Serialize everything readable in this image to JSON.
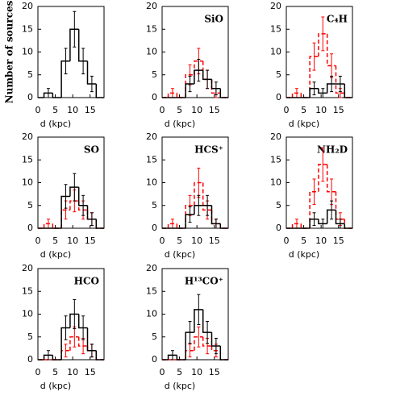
{
  "chart_data": [
    {
      "type": "histogram",
      "ylabel": "Number of sources",
      "xlabel": "d (kpc)",
      "bins": [
        0,
        1.75,
        4.25,
        6.75,
        9.25,
        11.75,
        14.25,
        16.75,
        19
      ],
      "xlim": [
        0,
        19
      ],
      "ylim": [
        0,
        20
      ],
      "xticks": [
        0,
        5,
        10,
        15
      ],
      "yticks": [
        0,
        5,
        10,
        15,
        20
      ],
      "series": [
        {
          "color": "#000000",
          "dashed": false,
          "values": [
            0,
            1,
            0,
            8,
            15,
            8,
            3,
            0
          ],
          "errors": [
            0,
            1,
            0,
            2.8,
            3.9,
            2.8,
            1.7,
            0
          ]
        }
      ]
    },
    {
      "type": "histogram",
      "label": "SiO",
      "xlabel": "d (kpc)",
      "bins": [
        0,
        1.75,
        4.25,
        6.75,
        9.25,
        11.75,
        14.25,
        16.75,
        19
      ],
      "xlim": [
        0,
        19
      ],
      "ylim": [
        0,
        20
      ],
      "xticks": [
        0,
        5,
        10,
        15
      ],
      "yticks": [
        0,
        5,
        10,
        15,
        20
      ],
      "series": [
        {
          "color": "#000000",
          "dashed": false,
          "values": [
            0,
            0,
            0,
            3,
            6,
            4,
            2,
            0
          ],
          "errors": [
            0,
            0,
            0,
            1.7,
            2.4,
            2,
            1.4,
            0
          ]
        },
        {
          "color": "#ff0000",
          "dashed": true,
          "values": [
            0,
            1,
            0,
            5,
            8,
            4,
            1,
            0
          ],
          "errors": [
            0,
            1,
            0,
            2.2,
            2.8,
            2,
            1,
            0
          ]
        }
      ]
    },
    {
      "type": "histogram",
      "label": "C₄H",
      "xlabel": "d (kpc)",
      "bins": [
        0,
        1.75,
        4.25,
        6.75,
        9.25,
        11.75,
        14.25,
        16.75,
        19
      ],
      "xlim": [
        0,
        19
      ],
      "ylim": [
        0,
        20
      ],
      "xticks": [
        0,
        5,
        10,
        15
      ],
      "yticks": [
        0,
        5,
        10,
        15,
        20
      ],
      "series": [
        {
          "color": "#000000",
          "dashed": false,
          "values": [
            0,
            0,
            0,
            2,
            1,
            3,
            3,
            0
          ],
          "errors": [
            0,
            0,
            0,
            1.4,
            1,
            1.7,
            1.7,
            0
          ]
        },
        {
          "color": "#ff0000",
          "dashed": true,
          "values": [
            0,
            1,
            0,
            9,
            14,
            7,
            1,
            0
          ],
          "errors": [
            0,
            1,
            0,
            3,
            3.7,
            2.6,
            1,
            0
          ]
        }
      ]
    },
    {
      "type": "histogram",
      "label": "SO",
      "xlabel": "d (kpc)",
      "bins": [
        0,
        1.75,
        4.25,
        6.75,
        9.25,
        11.75,
        14.25,
        16.75,
        19
      ],
      "xlim": [
        0,
        19
      ],
      "ylim": [
        0,
        20
      ],
      "xticks": [
        0,
        5,
        10,
        15
      ],
      "yticks": [
        0,
        5,
        10,
        15,
        20
      ],
      "series": [
        {
          "color": "#000000",
          "dashed": false,
          "values": [
            0,
            0,
            0,
            7,
            9,
            5,
            2,
            0
          ],
          "errors": [
            0,
            0,
            0,
            2.6,
            3,
            2.2,
            1.4,
            0
          ]
        },
        {
          "color": "#ff0000",
          "dashed": true,
          "values": [
            0,
            1,
            0,
            4,
            6,
            4,
            2,
            0
          ],
          "errors": [
            0,
            1,
            0,
            2,
            2.4,
            2,
            1.4,
            0
          ]
        }
      ]
    },
    {
      "type": "histogram",
      "label": "HCS⁺",
      "xlabel": "d (kpc)",
      "bins": [
        0,
        1.75,
        4.25,
        6.75,
        9.25,
        11.75,
        14.25,
        16.75,
        19
      ],
      "xlim": [
        0,
        19
      ],
      "ylim": [
        0,
        20
      ],
      "xticks": [
        0,
        5,
        10,
        15
      ],
      "yticks": [
        0,
        5,
        10,
        15,
        20
      ],
      "series": [
        {
          "color": "#000000",
          "dashed": false,
          "values": [
            0,
            0,
            0,
            3,
            5,
            5,
            1,
            0
          ],
          "errors": [
            0,
            0,
            0,
            1.7,
            2.2,
            2.2,
            1,
            0
          ]
        },
        {
          "color": "#ff0000",
          "dashed": true,
          "values": [
            0,
            1,
            0,
            5,
            10,
            4,
            1,
            0
          ],
          "errors": [
            0,
            1,
            0,
            2.2,
            3.2,
            2,
            1,
            0
          ]
        }
      ]
    },
    {
      "type": "histogram",
      "label": "NH₂D",
      "xlabel": "d (kpc)",
      "bins": [
        0,
        1.75,
        4.25,
        6.75,
        9.25,
        11.75,
        14.25,
        16.75,
        19
      ],
      "xlim": [
        0,
        19
      ],
      "ylim": [
        0,
        20
      ],
      "xticks": [
        0,
        5,
        10,
        15
      ],
      "yticks": [
        0,
        5,
        10,
        15,
        20
      ],
      "series": [
        {
          "color": "#000000",
          "dashed": false,
          "values": [
            0,
            0,
            0,
            2,
            1,
            4,
            1,
            0
          ],
          "errors": [
            0,
            0,
            0,
            1.4,
            1,
            2,
            1,
            0
          ]
        },
        {
          "color": "#ff0000",
          "dashed": true,
          "values": [
            0,
            1,
            0,
            8,
            14,
            8,
            2,
            0
          ],
          "errors": [
            0,
            1,
            0,
            2.8,
            3.7,
            2.8,
            1.4,
            0
          ]
        }
      ]
    },
    {
      "type": "histogram",
      "label": "HCO",
      "xlabel": "d (kpc)",
      "bins": [
        0,
        1.75,
        4.25,
        6.75,
        9.25,
        11.75,
        14.25,
        16.75,
        19
      ],
      "xlim": [
        0,
        19
      ],
      "ylim": [
        0,
        20
      ],
      "xticks": [
        0,
        5,
        10,
        15
      ],
      "yticks": [
        0,
        5,
        10,
        15,
        20
      ],
      "series": [
        {
          "color": "#000000",
          "dashed": false,
          "values": [
            0,
            1,
            0,
            7,
            10,
            7,
            2,
            0
          ],
          "errors": [
            0,
            1,
            0,
            2.6,
            3.2,
            2.6,
            1.4,
            0
          ]
        },
        {
          "color": "#ff0000",
          "dashed": true,
          "values": [
            0,
            0,
            0,
            2,
            5,
            3,
            2,
            0
          ],
          "errors": [
            0,
            0,
            0,
            1.4,
            2.2,
            1.7,
            1.4,
            0
          ]
        }
      ]
    },
    {
      "type": "histogram",
      "label": "H¹³CO⁺",
      "xlabel": "d (kpc)",
      "bins": [
        0,
        1.75,
        4.25,
        6.75,
        9.25,
        11.75,
        14.25,
        16.75,
        19
      ],
      "xlim": [
        0,
        19
      ],
      "ylim": [
        0,
        20
      ],
      "xticks": [
        0,
        5,
        10,
        15
      ],
      "yticks": [
        0,
        5,
        10,
        15,
        20
      ],
      "series": [
        {
          "color": "#000000",
          "dashed": false,
          "values": [
            0,
            1,
            0,
            6,
            11,
            6,
            3,
            0
          ],
          "errors": [
            0,
            1,
            0,
            2.4,
            3.3,
            2.4,
            1.7,
            0
          ]
        },
        {
          "color": "#ff0000",
          "dashed": true,
          "values": [
            0,
            0,
            0,
            2,
            5,
            3,
            2,
            0
          ],
          "errors": [
            0,
            0,
            0,
            1.4,
            2.2,
            1.7,
            1.4,
            0
          ]
        }
      ]
    }
  ]
}
